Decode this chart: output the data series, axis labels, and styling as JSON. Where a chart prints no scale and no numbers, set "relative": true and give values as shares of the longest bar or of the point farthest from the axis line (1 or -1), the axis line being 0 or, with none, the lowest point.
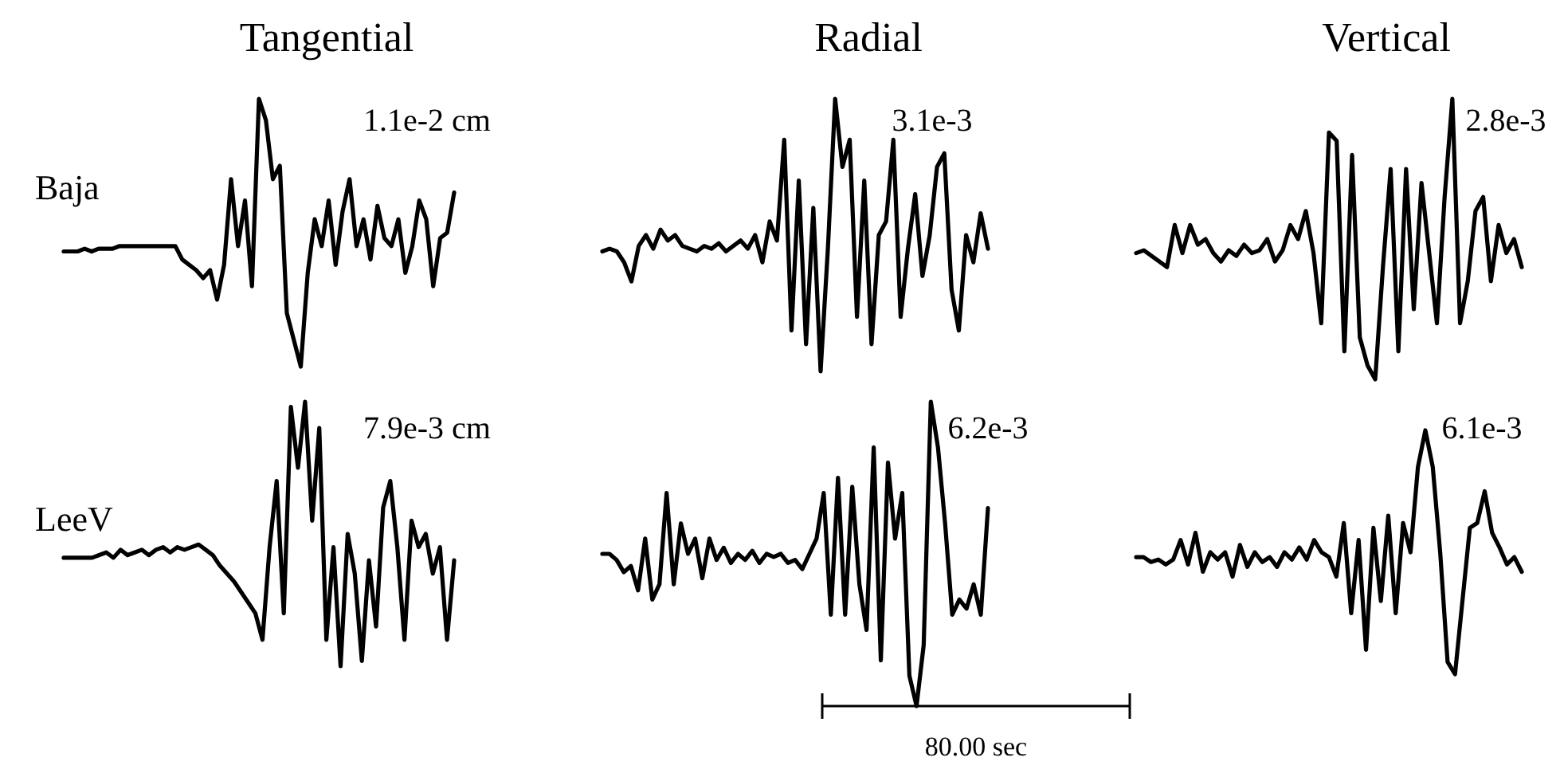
{
  "chart_data": [
    {
      "type": "line",
      "relative": true,
      "title": "Tangential",
      "ylabel": "Baja",
      "annotations": [
        "1.1e-2 cm"
      ],
      "categories": [
        null,
        null,
        null,
        null,
        null,
        null,
        null,
        null,
        null,
        null,
        null,
        null,
        null,
        null,
        null,
        null,
        null,
        null,
        null,
        null,
        null,
        null,
        null,
        null,
        null,
        null,
        null,
        null,
        null,
        null,
        null,
        null,
        null,
        null,
        null,
        null,
        null,
        null,
        null,
        null,
        null,
        null,
        null,
        null,
        null,
        null,
        null,
        null,
        null,
        null,
        null,
        null,
        null,
        null,
        null,
        null,
        null
      ],
      "series": [
        {
          "color": "#000000",
          "values": [
            0.43,
            0.43,
            0.43,
            0.44,
            0.43,
            0.44,
            0.44,
            0.44,
            0.45,
            0.45,
            0.45,
            0.45,
            0.45,
            0.45,
            0.45,
            0.45,
            0.45,
            0.4,
            0.38,
            0.36,
            0.33,
            0.36,
            0.25,
            0.38,
            0.7,
            0.45,
            0.62,
            0.3,
            1.0,
            0.92,
            0.7,
            0.75,
            0.2,
            0.1,
            0.0,
            0.35,
            0.55,
            0.45,
            0.62,
            0.38,
            0.58,
            0.7,
            0.45,
            0.55,
            0.4,
            0.6,
            0.48,
            0.45,
            0.55,
            0.35,
            0.45,
            0.62,
            0.55,
            0.3,
            0.48,
            0.5,
            0.65
          ]
        }
      ]
    },
    {
      "type": "line",
      "relative": true,
      "title": "Radial",
      "annotations": [
        "3.1e-3"
      ],
      "categories": [
        null,
        null,
        null,
        null,
        null,
        null,
        null,
        null,
        null,
        null,
        null,
        null,
        null,
        null,
        null,
        null,
        null,
        null,
        null,
        null,
        null,
        null,
        null,
        null,
        null,
        null,
        null,
        null,
        null,
        null,
        null,
        null,
        null,
        null,
        null,
        null,
        null,
        null,
        null,
        null,
        null,
        null,
        null,
        null,
        null,
        null,
        null,
        null,
        null,
        null,
        null,
        null,
        null,
        null
      ],
      "series": [
        {
          "color": "#000000",
          "values": [
            0.44,
            0.45,
            0.44,
            0.4,
            0.33,
            0.46,
            0.5,
            0.45,
            0.52,
            0.48,
            0.5,
            0.46,
            0.45,
            0.44,
            0.46,
            0.45,
            0.47,
            0.44,
            0.46,
            0.48,
            0.45,
            0.5,
            0.4,
            0.55,
            0.48,
            0.85,
            0.15,
            0.7,
            0.1,
            0.6,
            0.0,
            0.45,
            1.0,
            0.75,
            0.85,
            0.2,
            0.7,
            0.1,
            0.5,
            0.55,
            0.85,
            0.2,
            0.45,
            0.65,
            0.35,
            0.5,
            0.75,
            0.8,
            0.3,
            0.15,
            0.5,
            0.4,
            0.58,
            0.45
          ]
        }
      ]
    },
    {
      "type": "line",
      "relative": true,
      "title": "Vertical",
      "annotations": [
        "2.8e-3"
      ],
      "categories": [
        null,
        null,
        null,
        null,
        null,
        null,
        null,
        null,
        null,
        null,
        null,
        null,
        null,
        null,
        null,
        null,
        null,
        null,
        null,
        null,
        null,
        null,
        null,
        null,
        null,
        null,
        null,
        null,
        null,
        null,
        null,
        null,
        null,
        null,
        null,
        null,
        null,
        null,
        null,
        null,
        null,
        null,
        null,
        null,
        null,
        null,
        null,
        null,
        null,
        null,
        null
      ],
      "series": [
        {
          "color": "#000000",
          "values": [
            0.45,
            0.46,
            0.44,
            0.42,
            0.4,
            0.55,
            0.45,
            0.55,
            0.48,
            0.5,
            0.45,
            0.42,
            0.46,
            0.44,
            0.48,
            0.45,
            0.46,
            0.5,
            0.42,
            0.46,
            0.55,
            0.5,
            0.6,
            0.45,
            0.2,
            0.88,
            0.85,
            0.1,
            0.8,
            0.15,
            0.05,
            0.0,
            0.4,
            0.75,
            0.1,
            0.75,
            0.25,
            0.7,
            0.45,
            0.2,
            0.65,
            1.0,
            0.2,
            0.35,
            0.6,
            0.65,
            0.35,
            0.55,
            0.45,
            0.5,
            0.4
          ]
        }
      ]
    },
    {
      "type": "line",
      "relative": true,
      "ylabel": "LeeV",
      "annotations": [
        "7.9e-3 cm"
      ],
      "categories": [
        null,
        null,
        null,
        null,
        null,
        null,
        null,
        null,
        null,
        null,
        null,
        null,
        null,
        null,
        null,
        null,
        null,
        null,
        null,
        null,
        null,
        null,
        null,
        null,
        null,
        null,
        null,
        null,
        null,
        null,
        null,
        null,
        null,
        null,
        null,
        null,
        null,
        null,
        null,
        null,
        null,
        null,
        null,
        null,
        null,
        null,
        null,
        null,
        null,
        null,
        null,
        null,
        null,
        null,
        null,
        null
      ],
      "series": [
        {
          "color": "#000000",
          "values": [
            0.41,
            0.41,
            0.41,
            0.41,
            0.41,
            0.42,
            0.43,
            0.41,
            0.44,
            0.42,
            0.43,
            0.44,
            0.42,
            0.44,
            0.45,
            0.43,
            0.45,
            0.44,
            0.45,
            0.46,
            0.44,
            0.42,
            0.38,
            0.35,
            0.32,
            0.28,
            0.24,
            0.2,
            0.1,
            0.45,
            0.7,
            0.2,
            0.98,
            0.75,
            1.0,
            0.55,
            0.9,
            0.1,
            0.45,
            0.0,
            0.5,
            0.35,
            0.02,
            0.4,
            0.15,
            0.6,
            0.7,
            0.45,
            0.1,
            0.55,
            0.45,
            0.5,
            0.35,
            0.45,
            0.1,
            0.4
          ]
        }
      ]
    },
    {
      "type": "line",
      "relative": true,
      "annotations": [
        "6.2e-3",
        "80.00 sec"
      ],
      "categories": [
        null,
        null,
        null,
        null,
        null,
        null,
        null,
        null,
        null,
        null,
        null,
        null,
        null,
        null,
        null,
        null,
        null,
        null,
        null,
        null,
        null,
        null,
        null,
        null,
        null,
        null,
        null,
        null,
        null,
        null,
        null,
        null,
        null,
        null,
        null,
        null,
        null,
        null,
        null,
        null,
        null,
        null,
        null,
        null,
        null,
        null,
        null,
        null,
        null,
        null,
        null,
        null,
        null,
        null,
        null
      ],
      "series": [
        {
          "color": "#000000",
          "values": [
            0.5,
            0.5,
            0.48,
            0.44,
            0.46,
            0.38,
            0.55,
            0.35,
            0.4,
            0.7,
            0.4,
            0.6,
            0.5,
            0.55,
            0.42,
            0.55,
            0.48,
            0.52,
            0.47,
            0.5,
            0.48,
            0.51,
            0.47,
            0.5,
            0.49,
            0.5,
            0.47,
            0.48,
            0.45,
            0.5,
            0.55,
            0.7,
            0.3,
            0.75,
            0.3,
            0.72,
            0.4,
            0.25,
            0.85,
            0.15,
            0.8,
            0.55,
            0.7,
            0.1,
            0.0,
            0.2,
            1.0,
            0.85,
            0.6,
            0.3,
            0.35,
            0.32,
            0.4,
            0.3,
            0.65
          ]
        }
      ]
    },
    {
      "type": "line",
      "relative": true,
      "annotations": [
        "6.1e-3"
      ],
      "categories": [
        null,
        null,
        null,
        null,
        null,
        null,
        null,
        null,
        null,
        null,
        null,
        null,
        null,
        null,
        null,
        null,
        null,
        null,
        null,
        null,
        null,
        null,
        null,
        null,
        null,
        null,
        null,
        null,
        null,
        null,
        null,
        null,
        null,
        null,
        null,
        null,
        null,
        null,
        null,
        null,
        null,
        null,
        null,
        null,
        null,
        null,
        null,
        null,
        null,
        null,
        null,
        null,
        null
      ],
      "series": [
        {
          "color": "#000000",
          "values": [
            0.48,
            0.48,
            0.46,
            0.47,
            0.45,
            0.47,
            0.55,
            0.45,
            0.58,
            0.42,
            0.5,
            0.47,
            0.5,
            0.4,
            0.53,
            0.44,
            0.5,
            0.46,
            0.48,
            0.44,
            0.5,
            0.47,
            0.52,
            0.47,
            0.55,
            0.5,
            0.48,
            0.4,
            0.62,
            0.25,
            0.55,
            0.1,
            0.6,
            0.3,
            0.65,
            0.25,
            0.62,
            0.5,
            0.85,
            1.0,
            0.85,
            0.5,
            0.05,
            0.0,
            0.3,
            0.6,
            0.62,
            0.75,
            0.58,
            0.52,
            0.45,
            0.48,
            0.42
          ]
        }
      ]
    }
  ]
}
